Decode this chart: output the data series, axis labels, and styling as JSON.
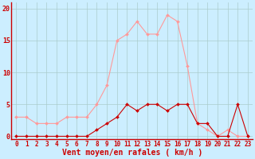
{
  "x": [
    0,
    1,
    2,
    3,
    4,
    5,
    6,
    7,
    8,
    9,
    10,
    11,
    12,
    13,
    14,
    15,
    16,
    17,
    18,
    19,
    20,
    21,
    22,
    23
  ],
  "y_rafales": [
    3,
    3,
    2,
    2,
    2,
    3,
    3,
    3,
    5,
    8,
    15,
    16,
    18,
    16,
    16,
    19,
    18,
    11,
    2,
    1,
    0,
    1,
    0,
    0
  ],
  "y_moyen": [
    0,
    0,
    0,
    0,
    0,
    0,
    0,
    0,
    1,
    2,
    3,
    5,
    4,
    5,
    5,
    4,
    5,
    5,
    2,
    2,
    0,
    0,
    5,
    0
  ],
  "line_color_rafales": "#ff9999",
  "line_color_moyen": "#cc0000",
  "bg_color": "#cceeff",
  "grid_color": "#aacccc",
  "xlabel": "Vent moyen/en rafales ( km/h )",
  "ylabel_ticks": [
    0,
    5,
    10,
    15,
    20
  ],
  "xlim": [
    -0.5,
    23.5
  ],
  "ylim": [
    -0.5,
    21
  ],
  "xlabel_color": "#cc0000",
  "tick_color": "#cc0000",
  "tick_fontsize": 5.5,
  "xlabel_fontsize": 7
}
